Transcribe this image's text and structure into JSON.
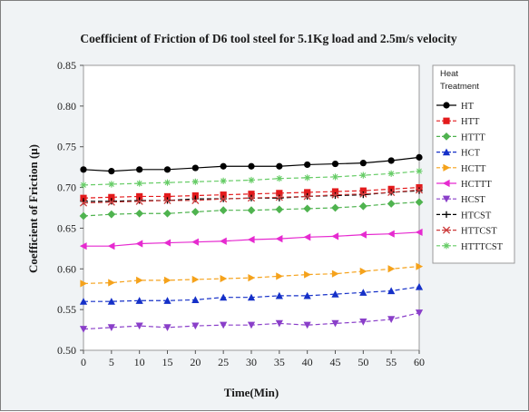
{
  "chart_data": {
    "type": "line",
    "title": "Coefficient of Friction of D6 tool steel for 5.1Kg load and 2.5m/s velocity",
    "xlabel": "Time(Min)",
    "ylabel": "Coefficient of Friction (μ)",
    "x": [
      0,
      5,
      10,
      15,
      20,
      25,
      30,
      35,
      40,
      45,
      50,
      55,
      60
    ],
    "xlim": [
      0,
      60
    ],
    "ylim": [
      0.5,
      0.85
    ],
    "x_ticks": [
      "0",
      "5",
      "10",
      "15",
      "20",
      "25",
      "30",
      "35",
      "40",
      "45",
      "50",
      "55",
      "60"
    ],
    "y_ticks": [
      "0.50",
      "0.55",
      "0.60",
      "0.65",
      "0.70",
      "0.75",
      "0.80",
      "0.85"
    ],
    "grid": false,
    "legend_title": [
      "Heat",
      "Treatment"
    ],
    "legend_position": "right",
    "series": [
      {
        "name": "HT",
        "color": "#000000",
        "marker": "circle",
        "dash": "solid",
        "values": [
          0.722,
          0.72,
          0.722,
          0.722,
          0.724,
          0.726,
          0.726,
          0.726,
          0.728,
          0.729,
          0.73,
          0.733,
          0.737
        ]
      },
      {
        "name": "HTT",
        "color": "#e31a1c",
        "marker": "square",
        "dash": "dashed",
        "values": [
          0.687,
          0.688,
          0.689,
          0.689,
          0.69,
          0.691,
          0.692,
          0.693,
          0.694,
          0.695,
          0.696,
          0.698,
          0.7
        ]
      },
      {
        "name": "HTTT",
        "color": "#4fb34f",
        "marker": "diamond",
        "dash": "dashed",
        "values": [
          0.665,
          0.667,
          0.668,
          0.668,
          0.67,
          0.672,
          0.672,
          0.673,
          0.674,
          0.675,
          0.677,
          0.68,
          0.682
        ]
      },
      {
        "name": "HCT",
        "color": "#1530c8",
        "marker": "triangle",
        "dash": "dashed",
        "values": [
          0.56,
          0.56,
          0.561,
          0.561,
          0.562,
          0.565,
          0.565,
          0.567,
          0.567,
          0.569,
          0.571,
          0.573,
          0.578
        ]
      },
      {
        "name": "HCTT",
        "color": "#f5a21b",
        "marker": "triangle-right",
        "dash": "dashed",
        "values": [
          0.582,
          0.583,
          0.586,
          0.586,
          0.587,
          0.588,
          0.589,
          0.591,
          0.593,
          0.594,
          0.597,
          0.6,
          0.603
        ]
      },
      {
        "name": "HCTTT",
        "color": "#e62ad0",
        "marker": "triangle-left",
        "dash": "solid",
        "values": [
          0.628,
          0.628,
          0.631,
          0.632,
          0.633,
          0.634,
          0.636,
          0.637,
          0.639,
          0.64,
          0.642,
          0.643,
          0.645
        ]
      },
      {
        "name": "HCST",
        "color": "#8a3fc9",
        "marker": "triangle-down",
        "dash": "dashed",
        "values": [
          0.526,
          0.528,
          0.53,
          0.528,
          0.53,
          0.531,
          0.531,
          0.533,
          0.531,
          0.533,
          0.535,
          0.538,
          0.546
        ]
      },
      {
        "name": "HTCST",
        "color": "#000000",
        "marker": "plus",
        "dash": "dashed",
        "values": [
          0.683,
          0.683,
          0.684,
          0.684,
          0.686,
          0.686,
          0.687,
          0.687,
          0.689,
          0.69,
          0.691,
          0.694,
          0.696
        ]
      },
      {
        "name": "HTTCST",
        "color": "#cc3a3a",
        "marker": "x",
        "dash": "dashed",
        "values": [
          0.681,
          0.682,
          0.683,
          0.684,
          0.684,
          0.686,
          0.687,
          0.688,
          0.689,
          0.691,
          0.692,
          0.694,
          0.697
        ]
      },
      {
        "name": "HTTTCST",
        "color": "#66cc66",
        "marker": "star",
        "dash": "dashed",
        "values": [
          0.703,
          0.704,
          0.705,
          0.706,
          0.707,
          0.708,
          0.709,
          0.711,
          0.712,
          0.713,
          0.715,
          0.717,
          0.72
        ]
      }
    ]
  }
}
